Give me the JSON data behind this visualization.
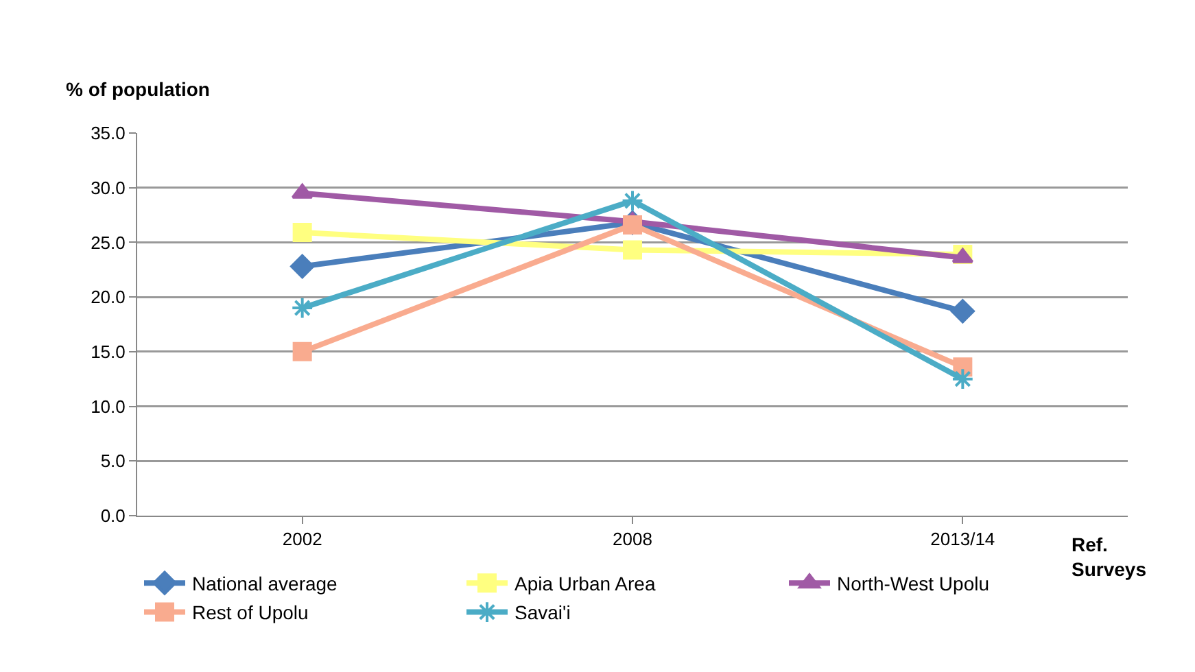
{
  "chart_data": {
    "type": "line",
    "ylabel": "% of population",
    "xlabel": "Ref. Surveys",
    "categories": [
      "2002",
      "2008",
      "2013/14"
    ],
    "ylim": [
      0,
      35
    ],
    "yticks": [
      {
        "value": 0,
        "label": "0.0"
      },
      {
        "value": 5,
        "label": "5.0"
      },
      {
        "value": 10,
        "label": "10.0"
      },
      {
        "value": 15,
        "label": "15.0"
      },
      {
        "value": 20,
        "label": "20.0"
      },
      {
        "value": 25,
        "label": "25.0"
      },
      {
        "value": 30,
        "label": "30.0"
      },
      {
        "value": 35,
        "label": "35.0"
      }
    ],
    "grid": "y",
    "legend": "bottom",
    "line_style": "solid",
    "series": [
      {
        "name": "National average",
        "color": "#4a7ebb",
        "marker": "diamond",
        "values": [
          22.8,
          26.8,
          18.7
        ]
      },
      {
        "name": "Apia Urban Area",
        "color": "#ffff80",
        "marker": "square",
        "values": [
          25.9,
          24.3,
          23.9
        ]
      },
      {
        "name": "North-West Upolu",
        "color": "#a05aa5",
        "marker": "triangle",
        "values": [
          29.5,
          26.9,
          23.6
        ]
      },
      {
        "name": "Rest of Upolu",
        "color": "#f9ab8f",
        "marker": "square",
        "values": [
          15.0,
          26.6,
          13.6
        ]
      },
      {
        "name": "Savai'i",
        "color": "#4bacc6",
        "marker": "cross",
        "values": [
          19.0,
          28.8,
          12.5
        ]
      }
    ]
  }
}
